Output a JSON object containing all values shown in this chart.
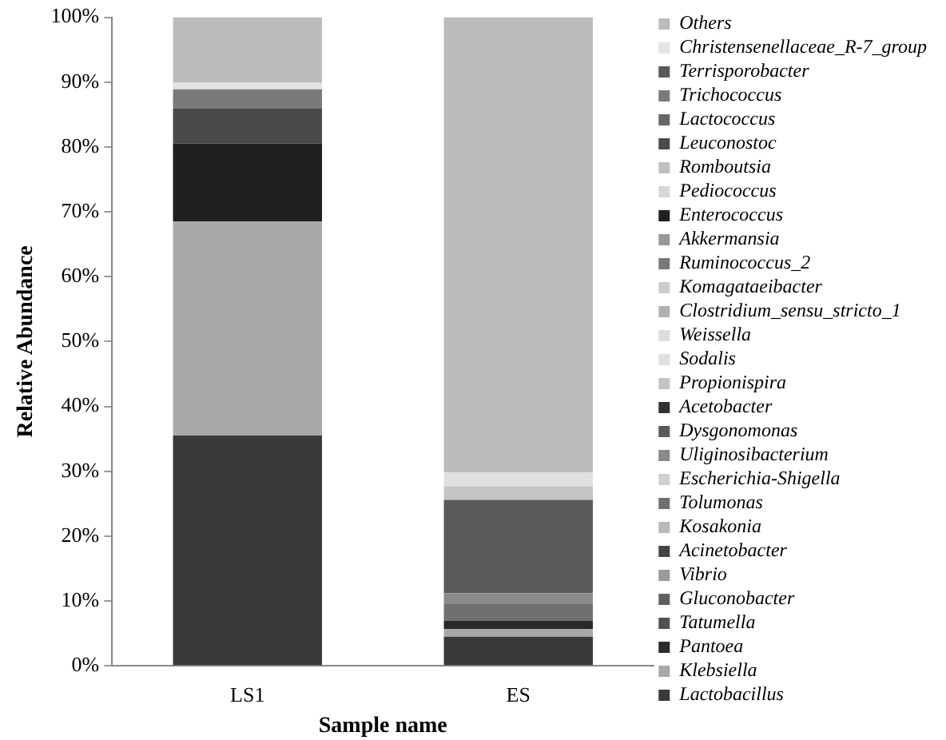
{
  "chart_data": {
    "type": "bar",
    "stacked": true,
    "xlabel": "Sample name",
    "ylabel": "Relative Abundance",
    "categories": [
      "LS1",
      "ES"
    ],
    "ylim": [
      0,
      100
    ],
    "yticks": [
      {
        "value": 0,
        "label": "0%"
      },
      {
        "value": 10,
        "label": "10%"
      },
      {
        "value": 20,
        "label": "20%"
      },
      {
        "value": 30,
        "label": "30%"
      },
      {
        "value": 40,
        "label": "40%"
      },
      {
        "value": 50,
        "label": "50%"
      },
      {
        "value": 60,
        "label": "60%"
      },
      {
        "value": 70,
        "label": "70%"
      },
      {
        "value": 80,
        "label": "80%"
      },
      {
        "value": 90,
        "label": "90%"
      },
      {
        "value": 100,
        "label": "100%"
      }
    ],
    "grid": false,
    "legend": "right",
    "series": [
      {
        "name": "Lactobacillus",
        "color": "#3a3a3a",
        "values": [
          35.5,
          4.5
        ]
      },
      {
        "name": "Klebsiella",
        "color": "#a8a8a8",
        "values": [
          33,
          1.2
        ]
      },
      {
        "name": "Pantoea",
        "color": "#2a2a2a",
        "values": [
          0,
          1.3
        ]
      },
      {
        "name": "Tatumella",
        "color": "#505050",
        "values": [
          0,
          0
        ]
      },
      {
        "name": "Gluconobacter",
        "color": "#606060",
        "values": [
          0,
          0
        ]
      },
      {
        "name": "Vibrio",
        "color": "#9a9a9a",
        "values": [
          0,
          0
        ]
      },
      {
        "name": "Acinetobacter",
        "color": "#444444",
        "values": [
          0,
          0
        ]
      },
      {
        "name": "Kosakonia",
        "color": "#b8b8b8",
        "values": [
          0,
          0
        ]
      },
      {
        "name": "Tolumonas",
        "color": "#707070",
        "values": [
          0,
          2.5
        ]
      },
      {
        "name": "Escherichia-Shigella",
        "color": "#d0d0d0",
        "values": [
          0,
          0
        ]
      },
      {
        "name": "Uliginosibacterium",
        "color": "#8a8a8a",
        "values": [
          0,
          1.7
        ]
      },
      {
        "name": "Dysgonomonas",
        "color": "#5a5a5a",
        "values": [
          0,
          14.4
        ]
      },
      {
        "name": "Acetobacter",
        "color": "#303030",
        "values": [
          0,
          0
        ]
      },
      {
        "name": "Propionispira",
        "color": "#c4c4c4",
        "values": [
          0,
          2.1
        ]
      },
      {
        "name": "Sodalis",
        "color": "#e0e0e0",
        "values": [
          0,
          2.1
        ]
      },
      {
        "name": "Weissella",
        "color": "#dcdcdc",
        "values": [
          0,
          0
        ]
      },
      {
        "name": "Clostridium_sensu_stricto_1",
        "color": "#b0b0b0",
        "values": [
          0,
          0
        ]
      },
      {
        "name": "Komagataeibacter",
        "color": "#cccccc",
        "values": [
          0,
          0
        ]
      },
      {
        "name": "Ruminococcus_2",
        "color": "#787878",
        "values": [
          0,
          0
        ]
      },
      {
        "name": "Akkermansia",
        "color": "#989898",
        "values": [
          0,
          0
        ]
      },
      {
        "name": "Enterococcus",
        "color": "#202020",
        "values": [
          12,
          0
        ]
      },
      {
        "name": "Pediococcus",
        "color": "#d8d8d8",
        "values": [
          0,
          0
        ]
      },
      {
        "name": "Romboutsia",
        "color": "#c0c0c0",
        "values": [
          0,
          0
        ]
      },
      {
        "name": "Leuconostoc",
        "color": "#4a4a4a",
        "values": [
          5.4,
          0
        ]
      },
      {
        "name": "Lactococcus",
        "color": "#686868",
        "values": [
          0,
          0
        ]
      },
      {
        "name": "Trichococcus",
        "color": "#7a7a7a",
        "values": [
          3,
          0
        ]
      },
      {
        "name": "Terrisporobacter",
        "color": "#585858",
        "values": [
          0,
          0
        ]
      },
      {
        "name": "Christensenellaceae_R-7_group",
        "color": "#e4e4e4",
        "values": [
          1,
          0
        ]
      },
      {
        "name": "Others",
        "color": "#bcbcbc",
        "values": [
          10.1,
          70.2
        ]
      }
    ]
  }
}
